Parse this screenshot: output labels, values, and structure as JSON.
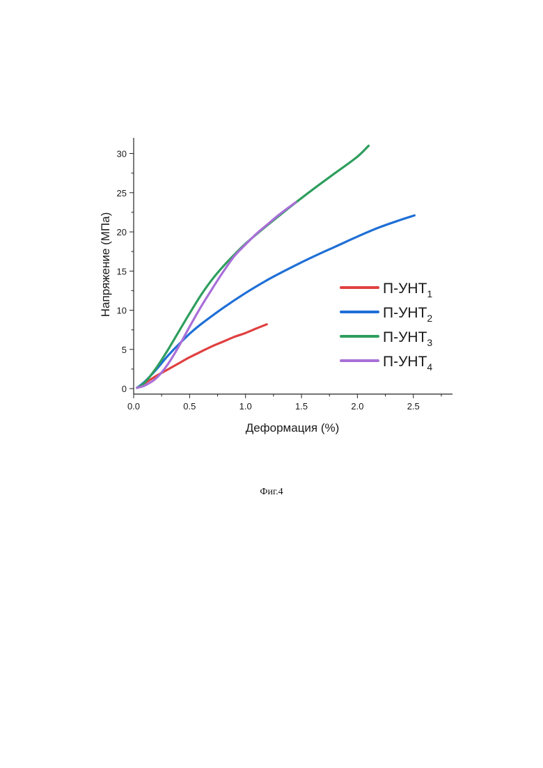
{
  "caption": "Фиг.4",
  "chart_data": {
    "type": "line",
    "xlabel": "Деформация (%)",
    "ylabel": "Напряжение (МПа)",
    "xlim": [
      0,
      2.85
    ],
    "ylim": [
      -0.7,
      32
    ],
    "xticks": [
      0.0,
      0.5,
      1.0,
      1.5,
      2.0,
      2.5
    ],
    "xtick_labels": [
      "0.0",
      "0.5",
      "1.0",
      "1.5",
      "2.0",
      "2.5"
    ],
    "yticks": [
      0,
      5,
      10,
      15,
      20,
      25,
      30
    ],
    "ytick_labels": [
      "0",
      "5",
      "10",
      "15",
      "20",
      "25",
      "30"
    ],
    "grid": false,
    "legend_position": "right",
    "series": [
      {
        "name": "П-УНТ",
        "subscript": "1",
        "color": "#e04040",
        "x": [
          0.03,
          0.1,
          0.2,
          0.3,
          0.4,
          0.5,
          0.6,
          0.7,
          0.8,
          0.9,
          1.0,
          1.1,
          1.19
        ],
        "y": [
          0.1,
          0.7,
          1.6,
          2.4,
          3.2,
          4.0,
          4.7,
          5.4,
          6.0,
          6.6,
          7.1,
          7.7,
          8.2
        ]
      },
      {
        "name": "П-УНТ",
        "subscript": "2",
        "color": "#1f6fd6",
        "x": [
          0.03,
          0.1,
          0.2,
          0.3,
          0.4,
          0.5,
          0.6,
          0.8,
          1.0,
          1.2,
          1.4,
          1.6,
          1.8,
          2.0,
          2.2,
          2.4,
          2.51
        ],
        "y": [
          0.1,
          0.9,
          2.4,
          4.1,
          5.6,
          7.0,
          8.2,
          10.3,
          12.2,
          13.9,
          15.4,
          16.8,
          18.1,
          19.4,
          20.6,
          21.6,
          22.1
        ]
      },
      {
        "name": "П-УНТ",
        "subscript": "3",
        "color": "#2e9e5e",
        "x": [
          0.03,
          0.1,
          0.2,
          0.3,
          0.4,
          0.5,
          0.6,
          0.7,
          0.8,
          0.9,
          1.0,
          1.2,
          1.4,
          1.6,
          1.8,
          2.0,
          2.1
        ],
        "y": [
          0.1,
          0.8,
          2.6,
          4.8,
          7.2,
          9.6,
          11.9,
          13.9,
          15.6,
          17.1,
          18.5,
          20.9,
          23.2,
          25.4,
          27.5,
          29.6,
          31.0
        ]
      },
      {
        "name": "П-УНТ",
        "subscript": "4",
        "color": "#a96fd9",
        "x": [
          0.03,
          0.1,
          0.2,
          0.3,
          0.4,
          0.5,
          0.6,
          0.7,
          0.8,
          0.9,
          1.0,
          1.1,
          1.2,
          1.3,
          1.45
        ],
        "y": [
          0.1,
          0.4,
          1.3,
          3.0,
          5.3,
          7.9,
          10.4,
          12.7,
          14.9,
          16.9,
          18.4,
          19.8,
          21.0,
          22.2,
          23.8
        ]
      }
    ]
  }
}
